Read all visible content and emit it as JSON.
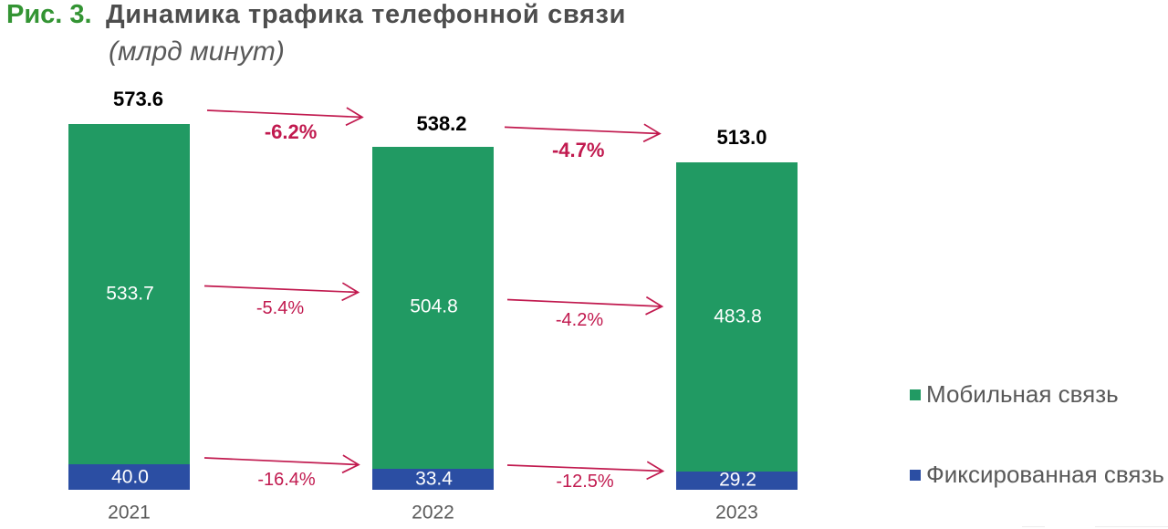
{
  "figure": {
    "number_label": "Рис. 3.",
    "title": "Динамика трафика телефонной связи",
    "subtitle": "(млрд минут)"
  },
  "colors": {
    "figure_number_green": "#339433",
    "title_gray": "#4d4d4d",
    "subtitle_gray": "#595959",
    "mobile_green": "#219a63",
    "fixed_blue": "#2b4ea3",
    "arrow_crimson": "#c11a4f",
    "axis_gray": "#d9d9d9",
    "year_label_gray": "#595959",
    "total_label_black": "#000000",
    "segment_label_white": "#ffffff"
  },
  "legend": {
    "items": [
      {
        "label": "Мобильная связь",
        "color": "#219a63"
      },
      {
        "label": "Фиксированная связь",
        "color": "#2b4ea3"
      }
    ]
  },
  "chart_data": {
    "type": "bar",
    "stacked": true,
    "title": "Динамика трафика телефонной связи",
    "subtitle": "(млрд минут)",
    "unit": "млрд минут",
    "categories": [
      "2021",
      "2022",
      "2023"
    ],
    "series": [
      {
        "name": "Мобильная связь",
        "color": "#219a63",
        "values": [
          533.7,
          504.8,
          483.8
        ],
        "labels": [
          "533.7",
          "504.8",
          "483.8"
        ]
      },
      {
        "name": "Фиксированная связь",
        "color": "#2b4ea3",
        "values": [
          40.0,
          33.4,
          29.2
        ],
        "labels": [
          "40.0",
          "33.4",
          "29.2"
        ]
      }
    ],
    "totals": {
      "values": [
        573.6,
        538.2,
        513.0
      ],
      "labels": [
        "573.6",
        "538.2",
        "513.0"
      ]
    },
    "changes": {
      "total": [
        "-6.2%",
        "-4.7%"
      ],
      "mobile": [
        "-5.4%",
        "-4.2%"
      ],
      "fixed": [
        "-16.4%",
        "-12.5%"
      ]
    },
    "legend_position": "right",
    "grid": false,
    "xlabel": "",
    "ylabel": ""
  }
}
